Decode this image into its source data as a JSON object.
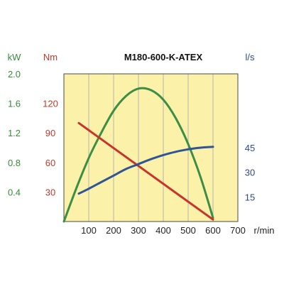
{
  "chart_data": {
    "type": "line",
    "title": "M180-600-K-ATEX",
    "x": {
      "label": "r/min",
      "min": 0,
      "max": 700,
      "ticks": [
        100,
        200,
        300,
        400,
        500,
        600,
        700
      ]
    },
    "axes": [
      {
        "id": "kw",
        "unit": "kW",
        "color": "#3a8a3a",
        "min": 0,
        "max": 2.0,
        "ticks": [
          0.4,
          0.8,
          1.2,
          1.6,
          2.0
        ],
        "tick_labels": [
          "0.4",
          "0.8",
          "1.2",
          "1.6",
          "2.0"
        ]
      },
      {
        "id": "nm",
        "unit": "Nm",
        "color": "#c0392b",
        "min": 0,
        "max": 150,
        "ticks": [
          30,
          60,
          90,
          120
        ],
        "tick_labels": [
          "30",
          "60",
          "90",
          "120"
        ]
      },
      {
        "id": "ls",
        "unit": "l/s",
        "color": "#2c4a8a",
        "min": 0,
        "max": 90,
        "ticks": [
          15,
          30,
          45
        ],
        "tick_labels": [
          "15",
          "30",
          "45"
        ]
      }
    ],
    "series": [
      {
        "axis": "kw",
        "color": "#3c8d45",
        "points": [
          [
            0,
            0
          ],
          [
            50,
            0.45
          ],
          [
            100,
            0.86
          ],
          [
            150,
            1.2
          ],
          [
            200,
            1.5
          ],
          [
            250,
            1.7
          ],
          [
            300,
            1.8
          ],
          [
            350,
            1.78
          ],
          [
            400,
            1.65
          ],
          [
            450,
            1.4
          ],
          [
            500,
            1.05
          ],
          [
            550,
            0.6
          ],
          [
            600,
            0.05
          ]
        ]
      },
      {
        "axis": "nm",
        "color": "#c8342c",
        "points": [
          [
            60,
            100
          ],
          [
            600,
            2
          ]
        ]
      },
      {
        "axis": "ls",
        "color": "#2f5596",
        "points": [
          [
            60,
            17
          ],
          [
            100,
            20
          ],
          [
            150,
            24
          ],
          [
            200,
            28
          ],
          [
            250,
            32
          ],
          [
            300,
            35
          ],
          [
            350,
            38
          ],
          [
            400,
            40.5
          ],
          [
            450,
            42.5
          ],
          [
            500,
            44
          ],
          [
            550,
            45
          ],
          [
            600,
            45.5
          ]
        ]
      }
    ]
  }
}
